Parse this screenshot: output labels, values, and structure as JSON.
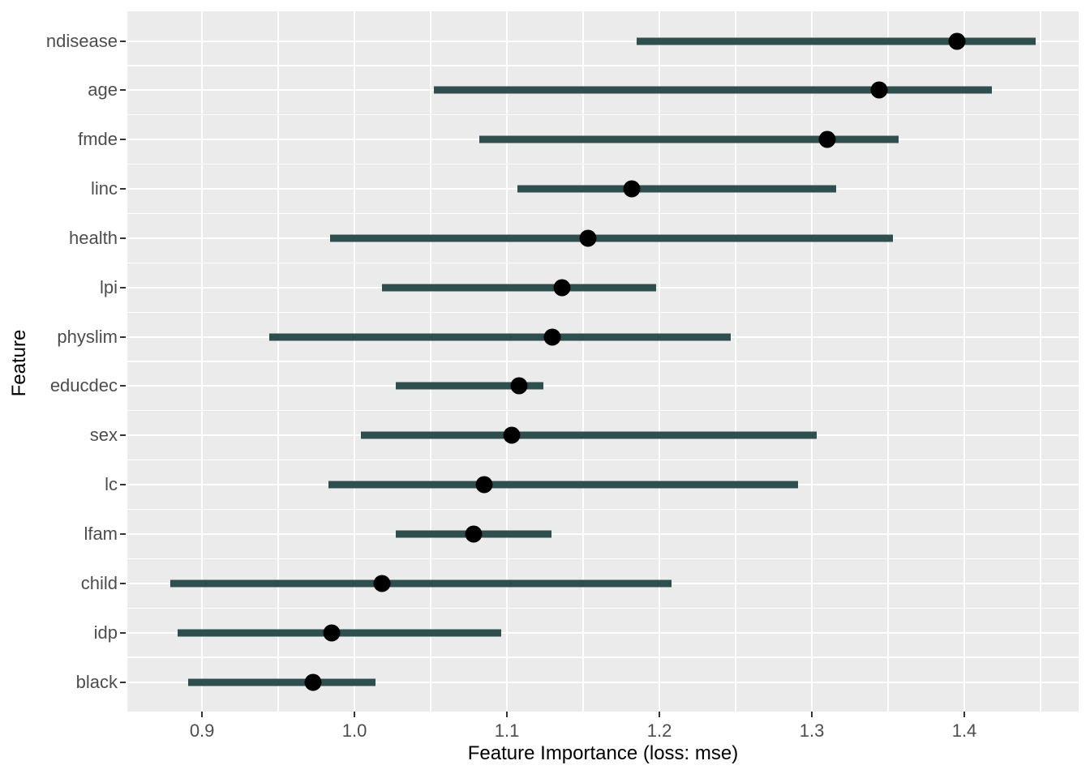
{
  "chart_data": {
    "type": "scatter",
    "subtype": "dot-with-horizontal-range",
    "title": "",
    "xlabel": "Feature Importance (loss: mse)",
    "ylabel": "Feature",
    "categories": [
      "ndisease",
      "age",
      "fmde",
      "linc",
      "health",
      "lpi",
      "physlim",
      "educdec",
      "sex",
      "lc",
      "lfam",
      "child",
      "idp",
      "black"
    ],
    "series": [
      {
        "name": "importance",
        "points": [
          1.395,
          1.344,
          1.31,
          1.182,
          1.153,
          1.136,
          1.13,
          1.108,
          1.103,
          1.085,
          1.078,
          1.018,
          0.985,
          0.973
        ],
        "ranges": [
          [
            1.185,
            1.447
          ],
          [
            1.052,
            1.418
          ],
          [
            1.082,
            1.357
          ],
          [
            1.107,
            1.316
          ],
          [
            0.984,
            1.353
          ],
          [
            1.018,
            1.198
          ],
          [
            0.944,
            1.247
          ],
          [
            1.027,
            1.124
          ],
          [
            1.004,
            1.303
          ],
          [
            0.983,
            1.291
          ],
          [
            1.027,
            1.129
          ],
          [
            0.879,
            1.208
          ],
          [
            0.884,
            1.096
          ],
          [
            0.891,
            1.014
          ]
        ]
      }
    ],
    "x_major_ticks": [
      0.9,
      1.0,
      1.1,
      1.2,
      1.3,
      1.4
    ],
    "x_major_tick_labels": [
      "0.9",
      "1.0",
      "1.1",
      "1.2",
      "1.3",
      "1.4"
    ],
    "x_minor_ticks": [
      0.95,
      1.05,
      1.15,
      1.25,
      1.35,
      1.45
    ],
    "xlim": [
      0.851,
      1.475
    ],
    "grid": "on",
    "legend_position": "none",
    "colors": {
      "range_bar": "#2F4F4F",
      "point": "#000000",
      "panel_background": "#EBEBEB",
      "gridline": "#FFFFFF",
      "tick_label": "#4D4D4D",
      "axis_title": "#000000",
      "tick_mark": "#333333",
      "page_background": "#FFFFFF"
    }
  }
}
